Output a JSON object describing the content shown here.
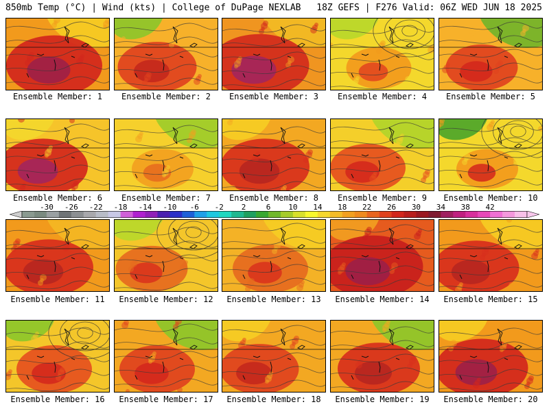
{
  "header": {
    "left": "850mb Temp (°C) | Wind (kts) | College of DuPage NEXLAB",
    "right": "18Z GEFS | F276 Valid: 06Z WED JUN 18 2025"
  },
  "panels": [
    {
      "label": "Ensemble Member: 1",
      "base": "#f29a1c",
      "hot": "#d2261c",
      "peak": "#9a1e4a",
      "cool": "#f6cd24",
      "hot_level": 0.8
    },
    {
      "label": "Ensemble Member: 2",
      "base": "#f7b12a",
      "hot": "#e0421e",
      "peak": "#c2261c",
      "cool": "#8bc62a",
      "hot_level": 0.55
    },
    {
      "label": "Ensemble Member: 3",
      "base": "#f09520",
      "hot": "#d22a1c",
      "peak": "#a02460",
      "cool": "#f2bb24",
      "hot_level": 0.85
    },
    {
      "label": "Ensemble Member: 4",
      "base": "#f4d82c",
      "hot": "#f29a1c",
      "peak": "#e0421e",
      "cool": "#b8d82a",
      "hot_level": 0.35
    },
    {
      "label": "Ensemble Member: 5",
      "base": "#f7b12a",
      "hot": "#e0421e",
      "peak": "#d2261c",
      "cool": "#6fb52a",
      "hot_level": 0.45
    },
    {
      "label": "Ensemble Member: 6",
      "base": "#f6c42a",
      "hot": "#d2261c",
      "peak": "#a02460",
      "cool": "#f4d82c",
      "hot_level": 0.7
    },
    {
      "label": "Ensemble Member: 7",
      "base": "#f6d02c",
      "hot": "#f2a020",
      "peak": "#e56a1e",
      "cool": "#9ccc2a",
      "hot_level": 0.3
    },
    {
      "label": "Ensemble Member: 8",
      "base": "#f3a822",
      "hot": "#d8301c",
      "peak": "#b42420",
      "cool": "#f6cd24",
      "hot_level": 0.7
    },
    {
      "label": "Ensemble Member: 9",
      "base": "#f4cf2a",
      "hot": "#e5501e",
      "peak": "#d2261c",
      "cool": "#b0d42a",
      "hot_level": 0.5
    },
    {
      "label": "Ensemble Member: 10",
      "base": "#f4d82c",
      "hot": "#f29a1c",
      "peak": "#d2261c",
      "cool": "#4aa52a",
      "hot_level": 0.3
    },
    {
      "label": "Ensemble Member: 11",
      "base": "#f29a1c",
      "hot": "#d82e1c",
      "peak": "#b42420",
      "cool": "#f4b824",
      "hot_level": 0.7
    },
    {
      "label": "Ensemble Member: 12",
      "base": "#f4c62a",
      "hot": "#e56a1e",
      "peak": "#d8301c",
      "cool": "#b8d82a",
      "hot_level": 0.45
    },
    {
      "label": "Ensemble Member: 13",
      "base": "#f4b226",
      "hot": "#e56a1e",
      "peak": "#d8301c",
      "cool": "#f6cd24",
      "hot_level": 0.5
    },
    {
      "label": "Ensemble Member: 14",
      "base": "#e65b1e",
      "hot": "#c81e1c",
      "peak": "#9a1e4a",
      "cool": "#f2a020",
      "hot_level": 0.85
    },
    {
      "label": "Ensemble Member: 15",
      "base": "#f29a1c",
      "hot": "#d82e1c",
      "peak": "#b42420",
      "cool": "#f6cd24",
      "hot_level": 0.65
    },
    {
      "label": "Ensemble Member: 16",
      "base": "#f4c62a",
      "hot": "#e5501e",
      "peak": "#d2261c",
      "cool": "#8bc62a",
      "hot_level": 0.5
    },
    {
      "label": "Ensemble Member: 17",
      "base": "#f3a822",
      "hot": "#e0421e",
      "peak": "#d2261c",
      "cool": "#8bc62a",
      "hot_level": 0.5
    },
    {
      "label": "Ensemble Member: 18",
      "base": "#f3a822",
      "hot": "#e0421e",
      "peak": "#c2261c",
      "cool": "#f6cd24",
      "hot_level": 0.55
    },
    {
      "label": "Ensemble Member: 19",
      "base": "#f3a822",
      "hot": "#d8301c",
      "peak": "#b42420",
      "cool": "#8bc62a",
      "hot_level": 0.6
    },
    {
      "label": "Ensemble Member: 20",
      "base": "#f29a1c",
      "hot": "#d2261c",
      "peak": "#9a1e4a",
      "cool": "#f6cd24",
      "hot_level": 0.75
    }
  ],
  "colorbar": {
    "ticks": [
      "-30",
      "-26",
      "-22",
      "-18",
      "-14",
      "-10",
      "-6",
      "-2",
      "2",
      "6",
      "10",
      "14",
      "18",
      "22",
      "26",
      "30",
      "34",
      "38",
      "42"
    ],
    "colors": [
      "#8a9a90",
      "#7a8a80",
      "#9aa0a2",
      "#6f7376",
      "#8c8f92",
      "#a8a8ac",
      "#b8bcc6",
      "#c8c8e6",
      "#d060d8",
      "#b020d0",
      "#9020b8",
      "#4a20b0",
      "#2a30c8",
      "#1e60d8",
      "#20a0e8",
      "#20c8e0",
      "#20d8c0",
      "#20b890",
      "#20a060",
      "#38a830",
      "#70b82a",
      "#a6cc2a",
      "#d8e02c",
      "#f8f82c",
      "#f6d82c",
      "#f4bc28",
      "#f2a020",
      "#ef8a1e",
      "#e8641e",
      "#e0421e",
      "#d2261c",
      "#b81e1c",
      "#9a1820",
      "#801a30",
      "#a02060",
      "#c02080",
      "#d8309c",
      "#e848b8",
      "#f070d4",
      "#f498dc",
      "#f8c0e8"
    ]
  }
}
